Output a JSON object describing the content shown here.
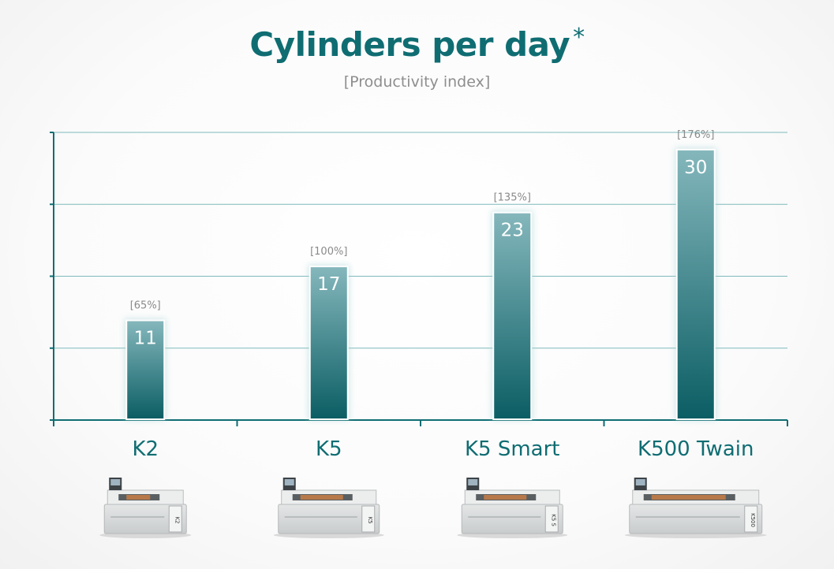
{
  "header": {
    "title": "Cylinders per day",
    "title_mark": "*",
    "subtitle": "[Productivity index]"
  },
  "chart_data": {
    "type": "bar",
    "title": "Cylinders per day*",
    "subtitle": "[Productivity index]",
    "categories": [
      "K2",
      "K5",
      "K5 Smart",
      "K500 Twain"
    ],
    "values": [
      11,
      17,
      23,
      30
    ],
    "value_labels": [
      "11",
      "17",
      "23",
      "30"
    ],
    "productivity_index": [
      "[65%]",
      "[100%]",
      "[135%]",
      "[176%]"
    ],
    "ylim": [
      0,
      32
    ],
    "grid": true,
    "legend": "none",
    "xlabel": "",
    "ylabel": ""
  },
  "products": [
    {
      "name": "K2",
      "badge": "K2"
    },
    {
      "name": "K5",
      "badge": "K5"
    },
    {
      "name": "K5 Smart",
      "badge": "K5 S"
    },
    {
      "name": "K500 Twain",
      "badge": "K500"
    }
  ],
  "colors": {
    "accent": "#0f6d72",
    "bar_top": "#7fb3b9",
    "bar_bottom": "#0b5f65",
    "grid": "#7fb9ba",
    "muted_text": "#8a8a8a"
  }
}
